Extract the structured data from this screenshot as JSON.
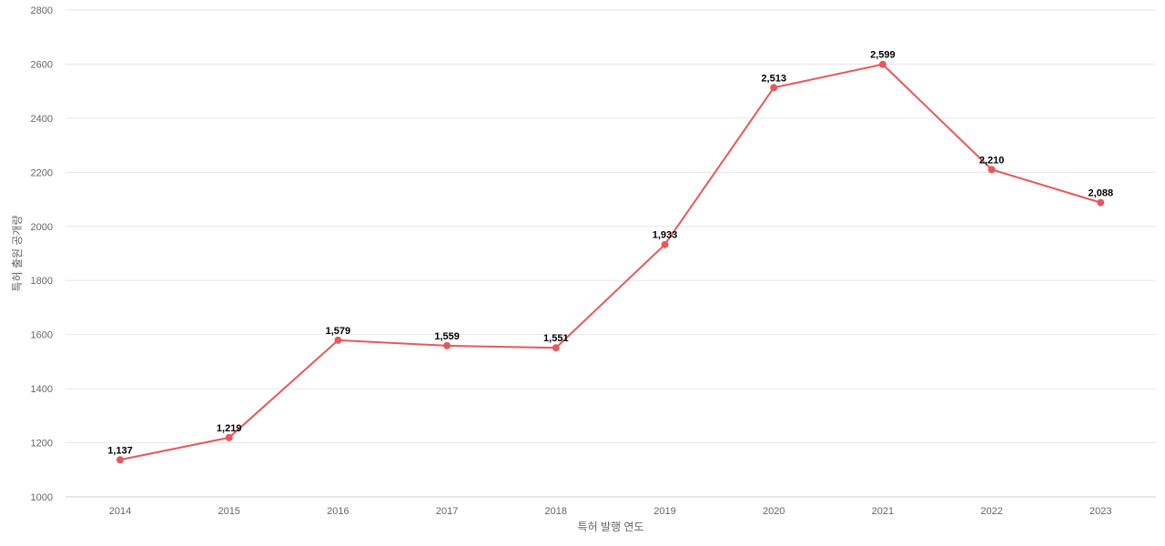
{
  "chart_data": {
    "type": "line",
    "title": "",
    "xlabel": "특허 발행 연도",
    "ylabel": "특허 출원 공개량",
    "categories": [
      "2014",
      "2015",
      "2016",
      "2017",
      "2018",
      "2019",
      "2020",
      "2021",
      "2022",
      "2023"
    ],
    "series": [
      {
        "values": [
          1137,
          1219,
          1579,
          1559,
          1551,
          1933,
          2513,
          2599,
          2210,
          2088
        ],
        "labels": [
          "1,137",
          "1,219",
          "1,579",
          "1,559",
          "1,551",
          "1,933",
          "2,513",
          "2,599",
          "2,210",
          "2,088"
        ],
        "color": "#e8585a"
      }
    ],
    "ylim": [
      1000,
      2800
    ],
    "yticks": [
      "1000",
      "1200",
      "1400",
      "1600",
      "1800",
      "2000",
      "2200",
      "2400",
      "2600",
      "2800"
    ],
    "grid": true,
    "legend": "none"
  }
}
